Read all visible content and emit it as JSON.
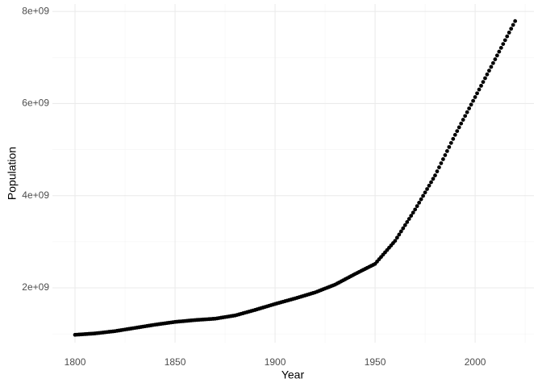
{
  "chart_data": {
    "type": "scatter",
    "x_label": "Year",
    "y_label": "Population",
    "color": "#000000",
    "grid": true,
    "xlim": [
      1788.7,
      2029.4
    ],
    "ylim": [
      810000000.0,
      8160000000.0
    ],
    "xticks": [
      1800,
      1850,
      1900,
      1950,
      2000
    ],
    "minor_xticks": [
      1825,
      1875,
      1925,
      1975,
      2025
    ],
    "yticks": [
      {
        "value": 2000000000.0,
        "label": "2e+09"
      },
      {
        "value": 4000000000.0,
        "label": "4e+09"
      },
      {
        "value": 6000000000.0,
        "label": "6e+09"
      },
      {
        "value": 8000000000.0,
        "label": "8e+09"
      }
    ],
    "minor_yticks": [
      1000000000.0,
      3000000000.0,
      5000000000.0,
      7000000000.0
    ],
    "x": [
      1800,
      1801,
      1802,
      1803,
      1804,
      1805,
      1806,
      1807,
      1808,
      1809,
      1810,
      1811,
      1812,
      1813,
      1814,
      1815,
      1816,
      1817,
      1818,
      1819,
      1820,
      1821,
      1822,
      1823,
      1824,
      1825,
      1826,
      1827,
      1828,
      1829,
      1830,
      1831,
      1832,
      1833,
      1834,
      1835,
      1836,
      1837,
      1838,
      1839,
      1840,
      1841,
      1842,
      1843,
      1844,
      1845,
      1846,
      1847,
      1848,
      1849,
      1850,
      1851,
      1852,
      1853,
      1854,
      1855,
      1856,
      1857,
      1858,
      1859,
      1860,
      1861,
      1862,
      1863,
      1864,
      1865,
      1866,
      1867,
      1868,
      1869,
      1870,
      1871,
      1872,
      1873,
      1874,
      1875,
      1876,
      1877,
      1878,
      1879,
      1880,
      1881,
      1882,
      1883,
      1884,
      1885,
      1886,
      1887,
      1888,
      1889,
      1890,
      1891,
      1892,
      1893,
      1894,
      1895,
      1896,
      1897,
      1898,
      1899,
      1900,
      1901,
      1902,
      1903,
      1904,
      1905,
      1906,
      1907,
      1908,
      1909,
      1910,
      1911,
      1912,
      1913,
      1914,
      1915,
      1916,
      1917,
      1918,
      1919,
      1920,
      1921,
      1922,
      1923,
      1924,
      1925,
      1926,
      1927,
      1928,
      1929,
      1930,
      1931,
      1932,
      1933,
      1934,
      1935,
      1936,
      1937,
      1938,
      1939,
      1940,
      1941,
      1942,
      1943,
      1944,
      1945,
      1946,
      1947,
      1948,
      1949,
      1950,
      1951,
      1952,
      1953,
      1954,
      1955,
      1956,
      1957,
      1958,
      1959,
      1960,
      1961,
      1962,
      1963,
      1964,
      1965,
      1966,
      1967,
      1968,
      1969,
      1970,
      1971,
      1972,
      1973,
      1974,
      1975,
      1976,
      1977,
      1978,
      1979,
      1980,
      1981,
      1982,
      1983,
      1984,
      1985,
      1986,
      1987,
      1988,
      1989,
      1990,
      1991,
      1992,
      1993,
      1994,
      1995,
      1996,
      1997,
      1998,
      1999,
      2000,
      2001,
      2002,
      2003,
      2004,
      2005,
      2006,
      2007,
      2008,
      2009,
      2010,
      2011,
      2012,
      2013,
      2014,
      2015,
      2016,
      2017,
      2018,
      2019,
      2020
    ],
    "values": [
      980000000.0,
      983000000.0,
      986000000.0,
      989000000.0,
      992000000.0,
      995000000.0,
      998000000.0,
      1001000000.0,
      1004000000.0,
      1007000000.0,
      1010000000.0,
      1015000000.0,
      1020000000.0,
      1025000000.0,
      1030000000.0,
      1035000000.0,
      1040000000.0,
      1045000000.0,
      1050000000.0,
      1055000000.0,
      1060000000.0,
      1067000000.0,
      1074000000.0,
      1081000000.0,
      1088000000.0,
      1095000000.0,
      1102000000.0,
      1109000000.0,
      1116000000.0,
      1123000000.0,
      1130000000.0,
      1137000000.0,
      1144000000.0,
      1151000000.0,
      1158000000.0,
      1165000000.0,
      1172000000.0,
      1179000000.0,
      1186000000.0,
      1193000000.0,
      1200000000.0,
      1206000000.0,
      1212000000.0,
      1218000000.0,
      1224000000.0,
      1230000000.0,
      1236000000.0,
      1242000000.0,
      1248000000.0,
      1254000000.0,
      1260000000.0,
      1264000000.0,
      1268000000.0,
      1272000000.0,
      1276000000.0,
      1280000000.0,
      1284000000.0,
      1288000000.0,
      1292000000.0,
      1296000000.0,
      1300000000.0,
      1303000000.0,
      1306000000.0,
      1309000000.0,
      1312000000.0,
      1315000000.0,
      1318000000.0,
      1321000000.0,
      1324000000.0,
      1327000000.0,
      1330000000.0,
      1337000000.0,
      1344000000.0,
      1351000000.0,
      1358000000.0,
      1365000000.0,
      1372000000.0,
      1379000000.0,
      1386000000.0,
      1393000000.0,
      1400000000.0,
      1412000000.0,
      1424000000.0,
      1436000000.0,
      1448000000.0,
      1460000000.0,
      1472000000.0,
      1484000000.0,
      1496000000.0,
      1508000000.0,
      1520000000.0,
      1533000000.0,
      1546000000.0,
      1559000000.0,
      1572000000.0,
      1585000000.0,
      1598000000.0,
      1611000000.0,
      1624000000.0,
      1637000000.0,
      1650000000.0,
      1662000000.0,
      1674000000.0,
      1686000000.0,
      1698000000.0,
      1710000000.0,
      1722000000.0,
      1734000000.0,
      1746000000.0,
      1758000000.0,
      1770000000.0,
      1783000000.0,
      1796000000.0,
      1809000000.0,
      1822000000.0,
      1835000000.0,
      1848000000.0,
      1861000000.0,
      1874000000.0,
      1887000000.0,
      1900000000.0,
      1917000000.0,
      1934000000.0,
      1951000000.0,
      1968000000.0,
      1985000000.0,
      2002000000.0,
      2019000000.0,
      2036000000.0,
      2053000000.0,
      2070000000.0,
      2093000000.0,
      2116000000.0,
      2139000000.0,
      2162000000.0,
      2185000000.0,
      2208000000.0,
      2231000000.0,
      2254000000.0,
      2277000000.0,
      2300000000.0,
      2322000000.0,
      2344000000.0,
      2366000000.0,
      2388000000.0,
      2410000000.0,
      2432000000.0,
      2454000000.0,
      2476000000.0,
      2498000000.0,
      2520000000.0,
      2570000000.0,
      2620000000.0,
      2670000000.0,
      2720000000.0,
      2770000000.0,
      2820000000.0,
      2870000000.0,
      2920000000.0,
      2970000000.0,
      3020000000.0,
      3088000000.0,
      3156000000.0,
      3224000000.0,
      3292000000.0,
      3360000000.0,
      3428000000.0,
      3496000000.0,
      3564000000.0,
      3632000000.0,
      3700000000.0,
      3774000000.0,
      3848000000.0,
      3922000000.0,
      3996000000.0,
      4070000000.0,
      4144000000.0,
      4218000000.0,
      4292000000.0,
      4366000000.0,
      4440000000.0,
      4528000000.0,
      4616000000.0,
      4704000000.0,
      4792000000.0,
      4880000000.0,
      4968000000.0,
      5056000000.0,
      5144000000.0,
      5232000000.0,
      5320000000.0,
      5402000000.0,
      5484000000.0,
      5566000000.0,
      5648000000.0,
      5730000000.0,
      5812000000.0,
      5894000000.0,
      5976000000.0,
      6058000000.0,
      6140000000.0,
      6222000000.0,
      6304000000.0,
      6386000000.0,
      6468000000.0,
      6550000000.0,
      6632000000.0,
      6714000000.0,
      6796000000.0,
      6878000000.0,
      6960000000.0,
      7043000000.0,
      7126000000.0,
      7209000000.0,
      7292000000.0,
      7375000000.0,
      7458000000.0,
      7541000000.0,
      7624000000.0,
      7707000000.0,
      7790000000.0
    ]
  }
}
